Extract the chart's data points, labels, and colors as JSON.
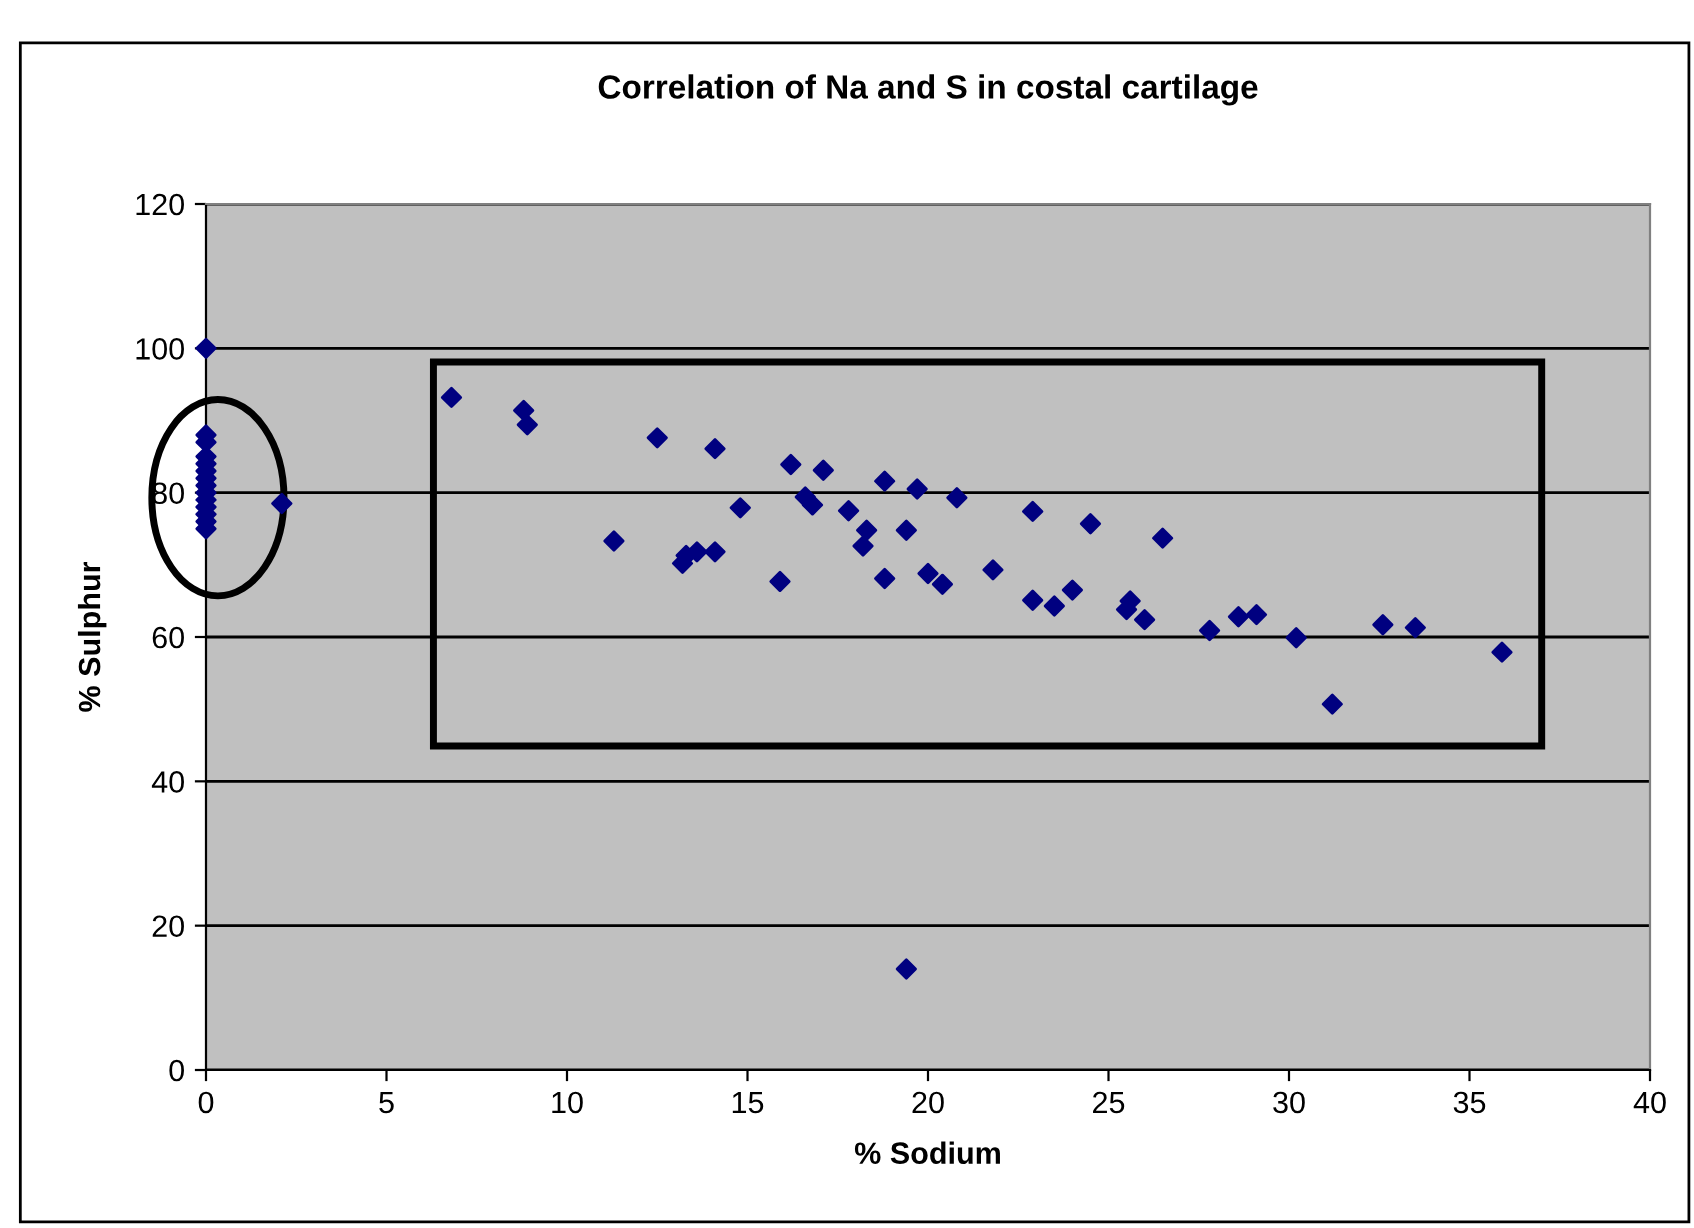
{
  "chart_data": {
    "type": "scatter",
    "title": "Correlation of Na and S in costal cartilage",
    "xlabel": "% Sodium",
    "ylabel": "% Sulphur",
    "xlim": [
      0,
      40
    ],
    "xticks": [
      0,
      5,
      10,
      15,
      20,
      25,
      30,
      35,
      40
    ],
    "ylim": [
      0,
      120
    ],
    "yticks": [
      0,
      20,
      40,
      60,
      80,
      100,
      120
    ],
    "grid": "y",
    "marker": "diamond",
    "series": [
      {
        "color": "#000080",
        "x": [
          0,
          0,
          0,
          0,
          0,
          0,
          0,
          0,
          0,
          0,
          0,
          0,
          0,
          0,
          2.1,
          6.8,
          8.8,
          8.9,
          12.5,
          14.1,
          16.2,
          17.1,
          18.8,
          19.7,
          20.8,
          22.9,
          24.5,
          26.5,
          11.3,
          13.2,
          13.3,
          13.6,
          14.1,
          14.8,
          15.9,
          16.6,
          16.8,
          17.8,
          18.3,
          18.2,
          19.4,
          18.8,
          20.0,
          20.4,
          21.8,
          22.9,
          23.5,
          24.0,
          25.5,
          25.6,
          26.0,
          27.8,
          28.6,
          29.1,
          30.2,
          31.2,
          32.6,
          33.5,
          35.9,
          19.4
        ],
        "values": [
          100,
          88,
          87,
          85,
          84,
          83,
          82,
          81,
          80,
          79,
          78,
          77,
          76,
          75,
          78.5,
          93.2,
          91.4,
          89.4,
          87.6,
          86.1,
          83.9,
          83.1,
          81.6,
          80.5,
          79.3,
          77.4,
          75.7,
          73.7,
          73.3,
          70.2,
          71.3,
          71.8,
          71.8,
          77.9,
          67.7,
          79.4,
          78.3,
          77.5,
          74.8,
          72.6,
          74.8,
          68.1,
          68.8,
          67.3,
          69.3,
          65.1,
          64.3,
          66.5,
          63.8,
          65.0,
          62.4,
          60.9,
          62.8,
          63.1,
          59.9,
          50.7,
          61.7,
          61.3,
          57.9,
          14.0
        ]
      }
    ]
  }
}
